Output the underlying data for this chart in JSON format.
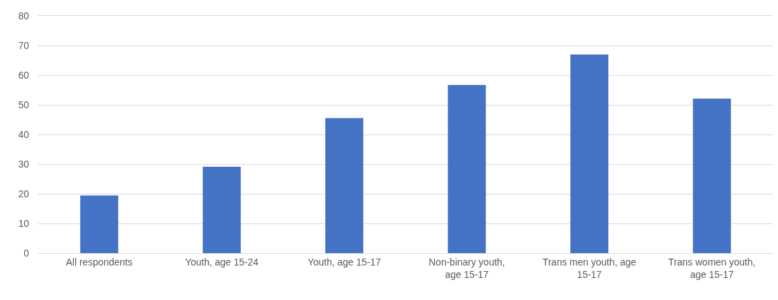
{
  "chart_data": {
    "type": "bar",
    "categories": [
      "All respondents",
      "Youth, age 15-24",
      "Youth, age 15-17",
      "Non-binary youth, age 15-17",
      "Trans men youth, age 15-17",
      "Trans women youth, age 15-17"
    ],
    "values": [
      19.4,
      29.1,
      45.5,
      56.7,
      67.0,
      52.1
    ],
    "color": "#4472c4",
    "ylim": [
      0,
      80
    ],
    "yticks": [
      0,
      10,
      20,
      30,
      40,
      50,
      60,
      70,
      80
    ],
    "grid": "y"
  }
}
